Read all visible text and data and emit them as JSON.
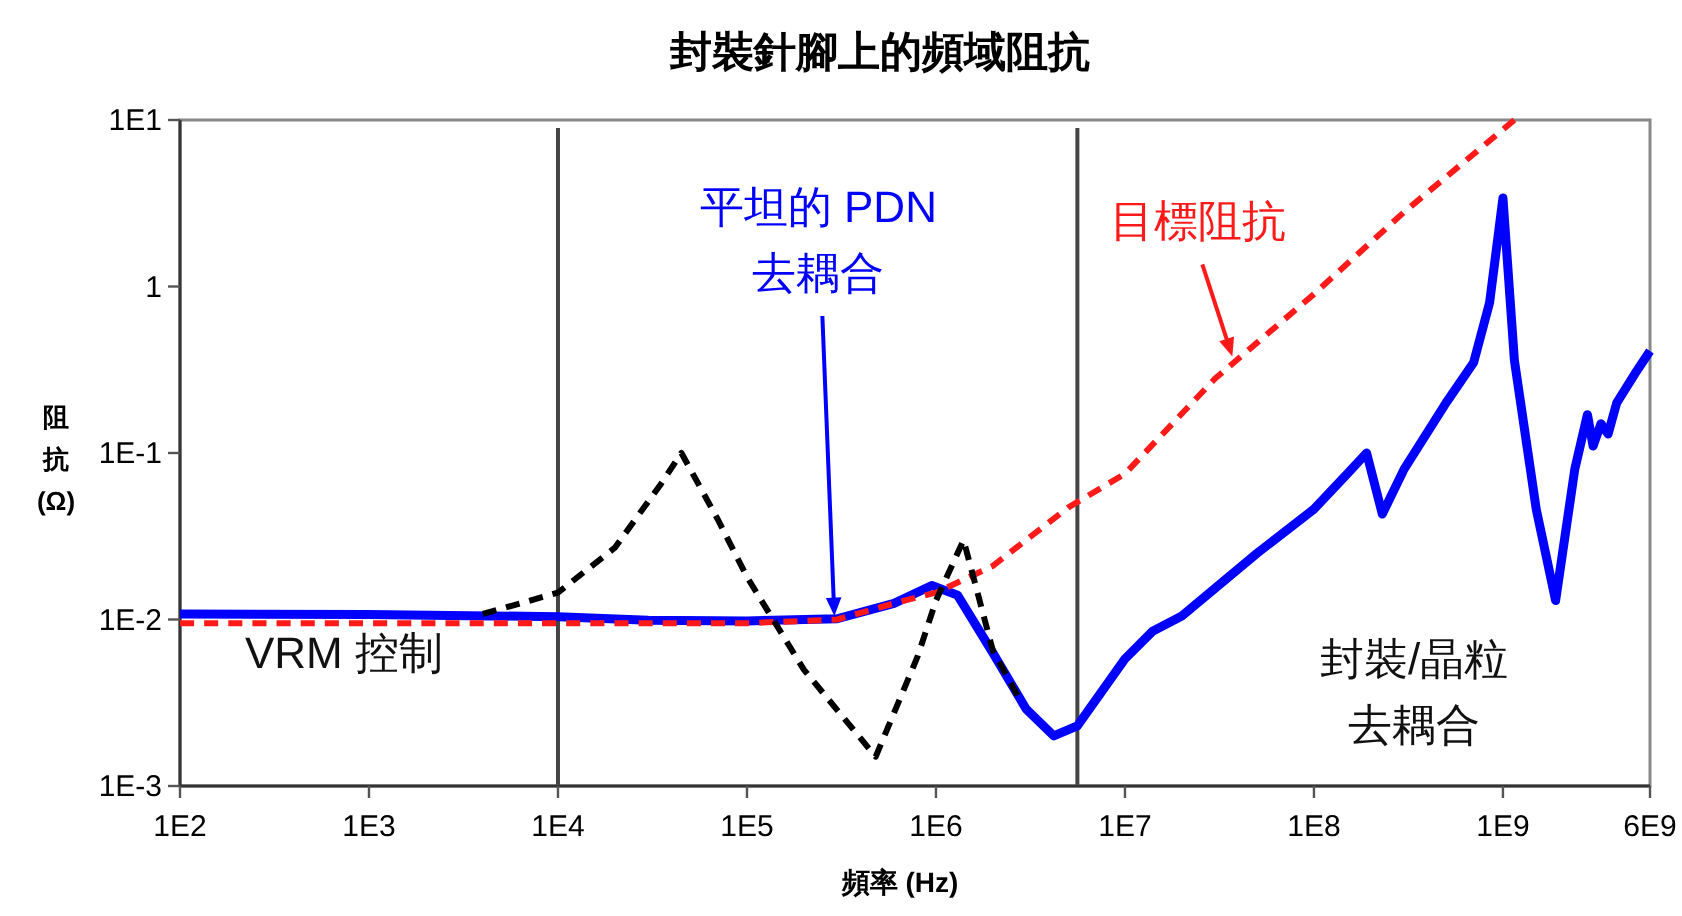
{
  "chart_data": {
    "type": "line",
    "title": "封裝針腳上的頻域阻抗",
    "xlabel": "頻率 (Hz)",
    "ylabel": "阻抗 (Ω)",
    "log": "xy",
    "xlim": [
      100,
      6000000000
    ],
    "ylim": [
      0.001,
      10
    ],
    "xticks": [
      {
        "value": 100,
        "label": "1E2"
      },
      {
        "value": 1000,
        "label": "1E3"
      },
      {
        "value": 10000,
        "label": "1E4"
      },
      {
        "value": 100000,
        "label": "1E5"
      },
      {
        "value": 1000000,
        "label": "1E6"
      },
      {
        "value": 10000000,
        "label": "1E7"
      },
      {
        "value": 100000000,
        "label": "1E8"
      },
      {
        "value": 1000000000,
        "label": "1E9"
      },
      {
        "value": 6000000000,
        "label": "6E9"
      }
    ],
    "yticks": [
      {
        "value": 0.001,
        "label": "1E-3"
      },
      {
        "value": 0.01,
        "label": "1E-2"
      },
      {
        "value": 0.1,
        "label": "1E-1"
      },
      1,
      {
        "value": 10,
        "label": "1E1"
      }
    ],
    "grid": false,
    "ref_lines": [
      {
        "axis": "x",
        "value": 10000,
        "color": "#444444"
      },
      {
        "axis": "x",
        "value": 5600000,
        "color": "#444444"
      }
    ],
    "series": [
      {
        "color": "#ff1a1a",
        "line_style": "dashed",
        "x": [
          100,
          100000,
          300000,
          600000,
          1000000,
          2000000,
          5000000,
          10000000,
          30000000,
          100000000,
          300000000,
          1150000000
        ],
        "values": [
          0.0095,
          0.0095,
          0.01,
          0.0125,
          0.0145,
          0.021,
          0.047,
          0.075,
          0.28,
          0.9,
          2.8,
          10
        ]
      },
      {
        "color": "#000000",
        "line_style": "dashed",
        "x": [
          4000,
          10000,
          20000,
          35000,
          45000,
          70000,
          100000,
          200000,
          480000,
          800000,
          1000000,
          1400000,
          2000000,
          2700000
        ],
        "values": [
          0.0108,
          0.0145,
          0.027,
          0.065,
          0.1,
          0.04,
          0.018,
          0.005,
          0.0015,
          0.006,
          0.013,
          0.03,
          0.0065,
          0.0035
        ]
      },
      {
        "color": "#0000ff",
        "line_style": "solid",
        "x": [
          100,
          1000,
          10000,
          30000,
          100000,
          300000,
          600000,
          950000,
          1300000,
          2000000,
          3000000,
          4200000,
          5600000,
          10000000,
          14000000,
          20000000,
          50000000,
          100000000,
          150000000,
          190000000,
          230000000,
          300000000,
          500000000,
          700000000,
          850000000,
          1000000000,
          1150000000,
          1500000000,
          1900000000,
          2400000000,
          2800000000,
          3000000000,
          3300000000,
          3600000000,
          4000000000,
          5000000000,
          6000000000
        ],
        "values": [
          0.0108,
          0.0107,
          0.0104,
          0.0099,
          0.0098,
          0.0101,
          0.0125,
          0.016,
          0.014,
          0.0063,
          0.0029,
          0.002,
          0.0023,
          0.0058,
          0.0085,
          0.0105,
          0.025,
          0.046,
          0.075,
          0.1,
          0.043,
          0.08,
          0.2,
          0.35,
          0.8,
          3.4,
          0.36,
          0.046,
          0.013,
          0.08,
          0.17,
          0.11,
          0.15,
          0.13,
          0.2,
          0.3,
          0.41
        ]
      }
    ],
    "annotations": [
      {
        "text": "平坦的 PDN\n去耦合",
        "x": 290000,
        "y": 0.0105
      },
      {
        "text": "目標阻抗",
        "x": 37000000,
        "y": 0.38
      },
      "VRM 控制",
      "封裝/晶粒",
      "去耦合"
    ]
  }
}
